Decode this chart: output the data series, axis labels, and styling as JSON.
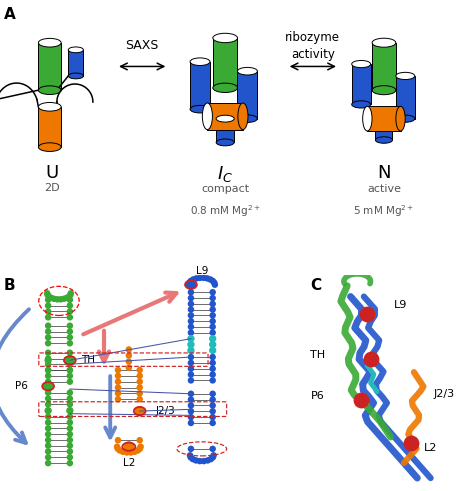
{
  "panel_a_label": "A",
  "panel_b_label": "B",
  "panel_c_label": "C",
  "saxs_text": "SAXS",
  "ribozyme_line1": "ribozyme",
  "ribozyme_line2": "activity",
  "U_label": "U",
  "U_sub": "2D",
  "Ic_label": "I",
  "Ic_sub": "compact",
  "Ic_sub2": "0.8 mM Mg",
  "N_label": "N",
  "N_sub": "active",
  "N_sub2": "5 mM Mg",
  "green": "#3aaa35",
  "blue": "#2255cc",
  "orange": "#ee7700",
  "red": "#cc2222",
  "salmon": "#e87878",
  "light_blue": "#6688cc",
  "cyan": "#22bbbb",
  "bg": "#ffffff"
}
